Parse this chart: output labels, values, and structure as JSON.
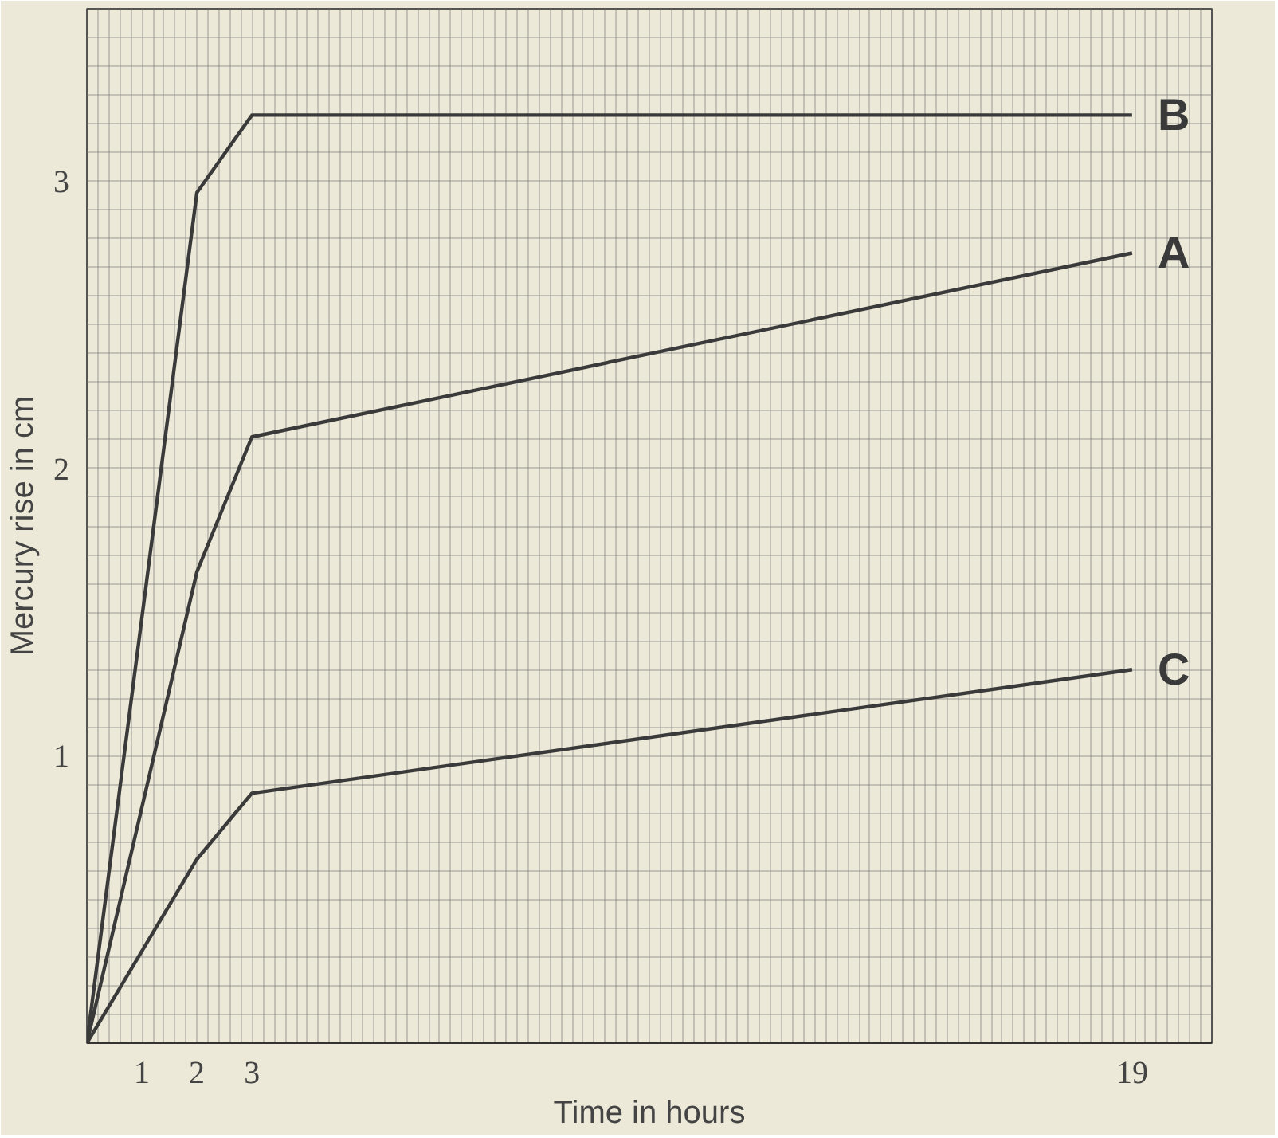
{
  "chart_data": {
    "type": "line",
    "xlabel": "Time in hours",
    "ylabel": "Mercury rise in cm",
    "x": [
      0,
      2,
      3,
      19
    ],
    "series": [
      {
        "name": "B",
        "color": "#3a3a3a",
        "values": [
          0,
          2.96,
          3.23,
          3.23
        ]
      },
      {
        "name": "A",
        "color": "#3a3a3a",
        "values": [
          0,
          1.64,
          2.11,
          2.75
        ]
      },
      {
        "name": "C",
        "color": "#3a3a3a",
        "values": [
          0,
          0.64,
          0.87,
          1.3
        ]
      }
    ],
    "xlim": [
      0,
      20.45
    ],
    "ylim": [
      0,
      3.6
    ],
    "xticks": [
      1,
      2,
      3,
      19
    ],
    "yticks": [
      1,
      2,
      3
    ],
    "grid": true,
    "marker": "none",
    "line_style": "solid"
  }
}
